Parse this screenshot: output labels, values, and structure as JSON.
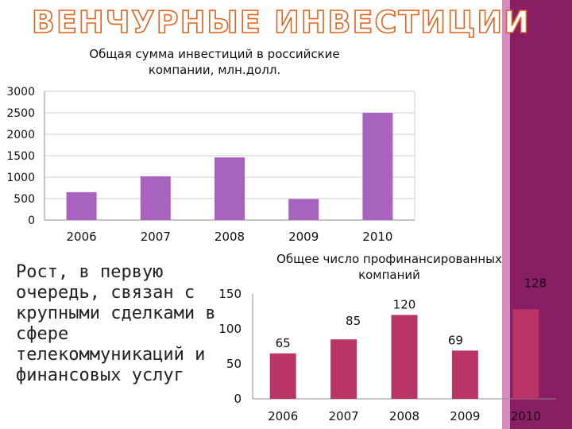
{
  "slide": {
    "title": "ВЕНЧУРНЫЕ ИНВЕСТИЦИИ",
    "body_text": "Рост, в первую очередь, связан с крупными сделками в сфере телекоммуникаций и финансовых услуг",
    "colors": {
      "band": "#8a1e64",
      "band_light": "#d58cc0"
    }
  },
  "chart_data": [
    {
      "type": "bar",
      "title": "Общая сумма инвестиций в российские компании, млн.долл.",
      "categories": [
        "2006",
        "2007",
        "2008",
        "2009",
        "2010"
      ],
      "values": [
        650,
        1020,
        1460,
        490,
        2500
      ],
      "ylim": [
        0,
        3000
      ],
      "yticks": [
        0,
        500,
        1000,
        1500,
        2000,
        2500,
        3000
      ],
      "grid": true,
      "color": "#a862c0"
    },
    {
      "type": "bar",
      "title": "Общее число профинансированных компаний",
      "categories": [
        "2006",
        "2007",
        "2008",
        "2009",
        "2010"
      ],
      "values": [
        65,
        85,
        120,
        69,
        128
      ],
      "data_labels": [
        "65",
        "85",
        "120",
        "69",
        "128"
      ],
      "ylim": [
        0,
        150
      ],
      "yticks": [
        0,
        50,
        100,
        150
      ],
      "grid": false,
      "color": "#b83565"
    }
  ]
}
